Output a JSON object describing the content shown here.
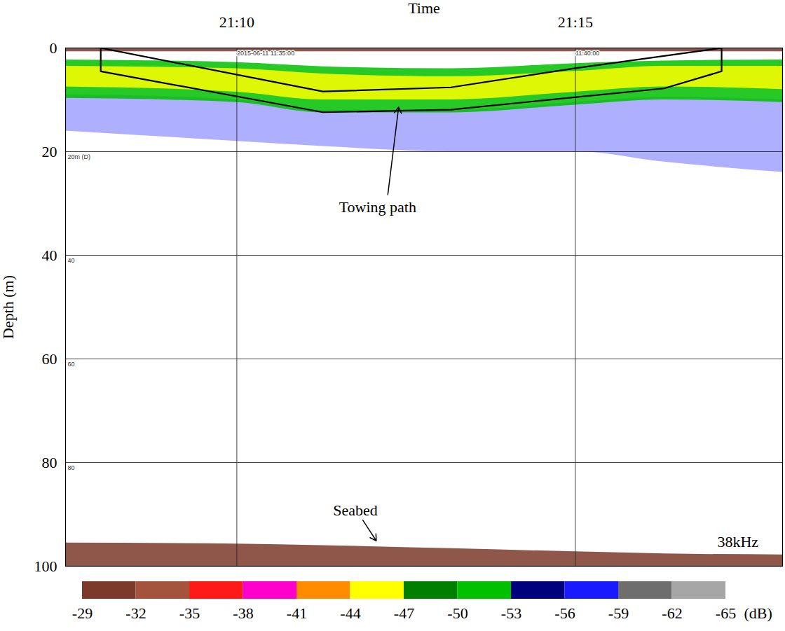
{
  "chart_data": {
    "type": "echogram",
    "x_label": "Time",
    "y_label": "Depth (m)",
    "xlim": [
      7.47,
      18.06
    ],
    "xticks": [
      {
        "value": 10,
        "label": "21:10"
      },
      {
        "value": 15,
        "label": "21:15"
      }
    ],
    "ylim": [
      0,
      100
    ],
    "yticks": [
      0,
      20,
      40,
      60,
      80,
      100
    ],
    "grid": true,
    "layers": [
      {
        "sv": -57,
        "time": [
          7.47,
          10,
          11.27,
          13.16,
          15,
          16.31,
          18.06
        ],
        "top": [
          9,
          10,
          12,
          12,
          10.5,
          9.5,
          10
        ],
        "bottom": [
          16,
          18,
          19,
          20,
          20,
          22,
          24
        ]
      },
      {
        "sv": -50,
        "time": [
          7.47,
          10,
          11.27,
          13.16,
          15,
          16.31,
          18.06
        ],
        "top": [
          2.3,
          2.8,
          3.6,
          4.0,
          3.0,
          2.5,
          2.3
        ],
        "bottom": [
          9.7,
          10.5,
          12.5,
          12.5,
          11,
          10,
          10.5
        ]
      },
      {
        "sv": -45,
        "time": [
          7.47,
          10,
          11.27,
          13.16,
          15,
          16.31,
          18.06
        ],
        "top": [
          3.5,
          4,
          5,
          5.5,
          4.5,
          3.5,
          3.5
        ],
        "bottom": [
          7.5,
          8.5,
          10,
          10,
          8.5,
          7.5,
          8
        ]
      },
      {
        "sv": -30,
        "time": [
          7.47,
          10,
          11.27,
          13.16,
          15,
          16.31,
          18.06
        ],
        "top": [
          0,
          0,
          0,
          0,
          0,
          0,
          0
        ],
        "bottom": [
          0.7,
          0.7,
          0.7,
          0.7,
          0.7,
          0.7,
          0.7
        ]
      },
      {
        "sv": -30,
        "time": [
          7.47,
          10,
          11.27,
          13.16,
          15,
          16.31,
          18.06
        ],
        "top": [
          95.5,
          95.7,
          96,
          96.6,
          97.2,
          97.6,
          97.8
        ],
        "bottom": [
          100,
          100,
          100,
          100,
          100,
          100,
          100
        ]
      }
    ],
    "towing_path": {
      "time": [
        7.99,
        7.99,
        11.27,
        13.16,
        16.31,
        17.16,
        17.16,
        15.0,
        13.16,
        11.27
      ],
      "depth": [
        0,
        4.5,
        12.4,
        11.9,
        7.8,
        4.5,
        0,
        3.9,
        7.6,
        8.4
      ]
    },
    "colorbar": {
      "ticks": [
        -29,
        -32,
        -35,
        -38,
        -41,
        -44,
        -47,
        -50,
        -53,
        -56,
        -59,
        -62,
        -65
      ],
      "colors": [
        "#7b3a2a",
        "#a4543c",
        "#ff1a1a",
        "#ff00cc",
        "#ff8c00",
        "#ffff00",
        "#007f00",
        "#00c000",
        "#00007f",
        "#1a1aff",
        "#6e6e6e",
        "#a6a6a6"
      ],
      "label": "(dB)"
    },
    "annotations": [
      {
        "text": "Towing path",
        "x": 12.08,
        "y": 30.8,
        "arrow_x": [
          12.23,
          12.39
        ],
        "arrow_y": [
          28.3,
          11.4
        ]
      },
      {
        "text": "Seabed",
        "x": 11.75,
        "y": 89.2,
        "arrow_x": [
          11.86,
          12.06
        ],
        "arrow_y": [
          91.1,
          95.1
        ]
      },
      {
        "text": "38kHz",
        "x": 17.4,
        "y": 95.3
      }
    ],
    "echogram_labels": [
      {
        "text": "2015-06-11 11:35:00",
        "x": 10,
        "y": 0.6
      },
      {
        "text": "11:40:00",
        "x": 15,
        "y": 0.6
      },
      {
        "text": "20m (D)",
        "x": 7.5,
        "y": 20.5
      },
      {
        "text": "40",
        "x": 7.5,
        "y": 40.5
      },
      {
        "text": "60",
        "x": 7.5,
        "y": 60.5
      },
      {
        "text": "80",
        "x": 7.5,
        "y": 80.5
      }
    ]
  }
}
